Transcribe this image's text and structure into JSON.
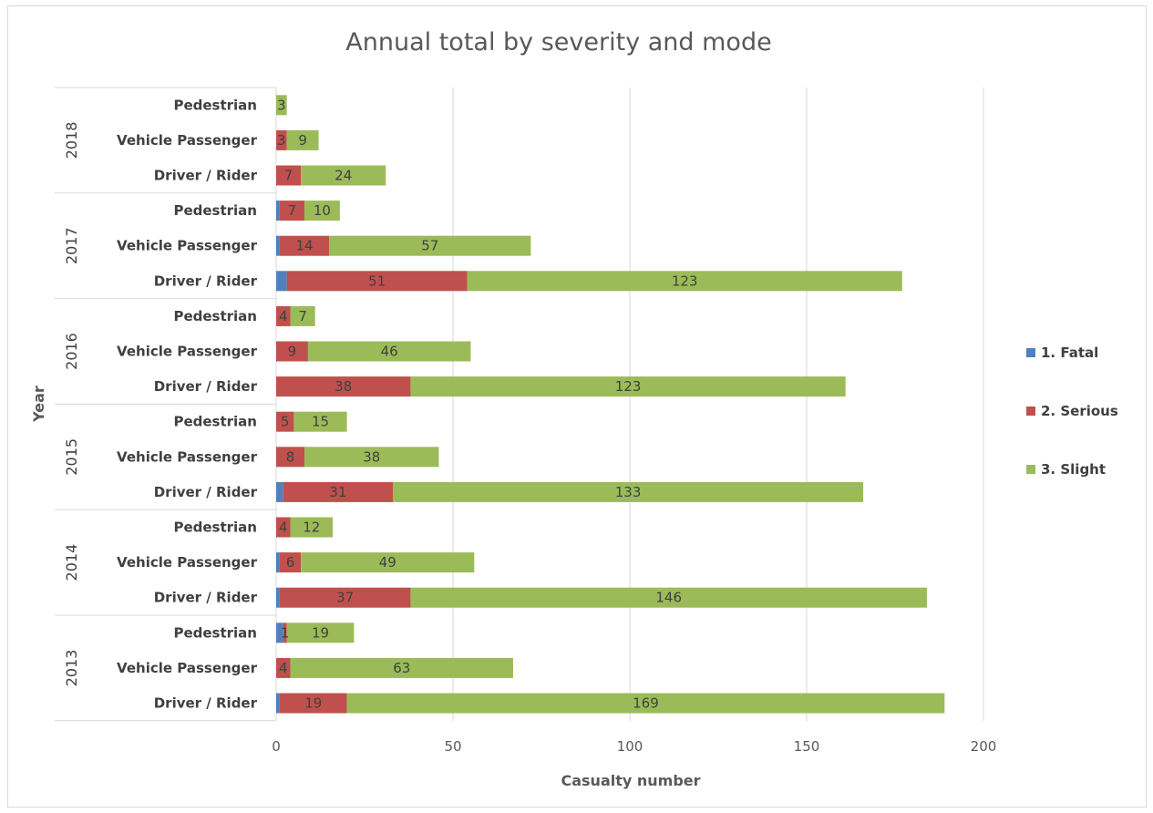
{
  "chart_data": {
    "type": "bar",
    "orientation": "horizontal",
    "stacked": true,
    "title": "Annual total by severity and mode",
    "xlabel": "Casualty number",
    "ylabel": "Year",
    "xlim": [
      0,
      200
    ],
    "x_ticks": [
      "0",
      "50",
      "100",
      "150",
      "200"
    ],
    "grid": true,
    "legend_position": "right",
    "groups": [
      {
        "year": "2018",
        "rows": [
          {
            "mode": "Pedestrian",
            "fatal": 0,
            "serious": 0,
            "slight": 3,
            "labels": [
              "",
              "",
              "3"
            ]
          },
          {
            "mode": "Vehicle Passenger",
            "fatal": 0,
            "serious": 3,
            "slight": 9,
            "labels": [
              "",
              "3",
              "9"
            ]
          },
          {
            "mode": "Driver / Rider",
            "fatal": 0,
            "serious": 7,
            "slight": 24,
            "labels": [
              "",
              "7",
              "24"
            ]
          }
        ]
      },
      {
        "year": "2017",
        "rows": [
          {
            "mode": "Pedestrian",
            "fatal": 1,
            "serious": 7,
            "slight": 10,
            "labels": [
              "",
              "7",
              "10"
            ]
          },
          {
            "mode": "Vehicle Passenger",
            "fatal": 1,
            "serious": 14,
            "slight": 57,
            "labels": [
              "",
              "14",
              "57"
            ]
          },
          {
            "mode": "Driver / Rider",
            "fatal": 3,
            "serious": 51,
            "slight": 123,
            "labels": [
              "",
              "51",
              "123"
            ]
          }
        ]
      },
      {
        "year": "2016",
        "rows": [
          {
            "mode": "Pedestrian",
            "fatal": 0,
            "serious": 4,
            "slight": 7,
            "labels": [
              "",
              "4",
              "7"
            ]
          },
          {
            "mode": "Vehicle Passenger",
            "fatal": 0,
            "serious": 9,
            "slight": 46,
            "labels": [
              "",
              "9",
              "46"
            ]
          },
          {
            "mode": "Driver / Rider",
            "fatal": 0,
            "serious": 38,
            "slight": 123,
            "labels": [
              "",
              "38",
              "123"
            ]
          }
        ]
      },
      {
        "year": "2015",
        "rows": [
          {
            "mode": "Pedestrian",
            "fatal": 0,
            "serious": 5,
            "slight": 15,
            "labels": [
              "",
              "5",
              "15"
            ]
          },
          {
            "mode": "Vehicle Passenger",
            "fatal": 0,
            "serious": 8,
            "slight": 38,
            "labels": [
              "",
              "8",
              "38"
            ]
          },
          {
            "mode": "Driver / Rider",
            "fatal": 2,
            "serious": 31,
            "slight": 133,
            "labels": [
              "",
              "31",
              "133"
            ]
          }
        ]
      },
      {
        "year": "2014",
        "rows": [
          {
            "mode": "Pedestrian",
            "fatal": 0,
            "serious": 4,
            "slight": 12,
            "labels": [
              "",
              "4",
              "12"
            ]
          },
          {
            "mode": "Vehicle Passenger",
            "fatal": 1,
            "serious": 6,
            "slight": 49,
            "labels": [
              "",
              "6",
              "49"
            ]
          },
          {
            "mode": "Driver / Rider",
            "fatal": 1,
            "serious": 37,
            "slight": 146,
            "labels": [
              "",
              "37",
              "146"
            ]
          }
        ]
      },
      {
        "year": "2013",
        "rows": [
          {
            "mode": "Pedestrian",
            "fatal": 2,
            "serious": 1,
            "slight": 19,
            "labels": [
              "",
              "1",
              "19"
            ]
          },
          {
            "mode": "Vehicle Passenger",
            "fatal": 0,
            "serious": 4,
            "slight": 63,
            "labels": [
              "",
              "4",
              "63"
            ]
          },
          {
            "mode": "Driver / Rider",
            "fatal": 1,
            "serious": 19,
            "slight": 169,
            "labels": [
              "",
              "19",
              "169"
            ]
          }
        ]
      }
    ],
    "series": [
      {
        "name": "1. Fatal",
        "key": "fatal",
        "color": "#4f81bd"
      },
      {
        "name": "2. Serious",
        "key": "serious",
        "color": "#c0504d"
      },
      {
        "name": "3. Slight",
        "key": "slight",
        "color": "#9bbb59"
      }
    ]
  }
}
